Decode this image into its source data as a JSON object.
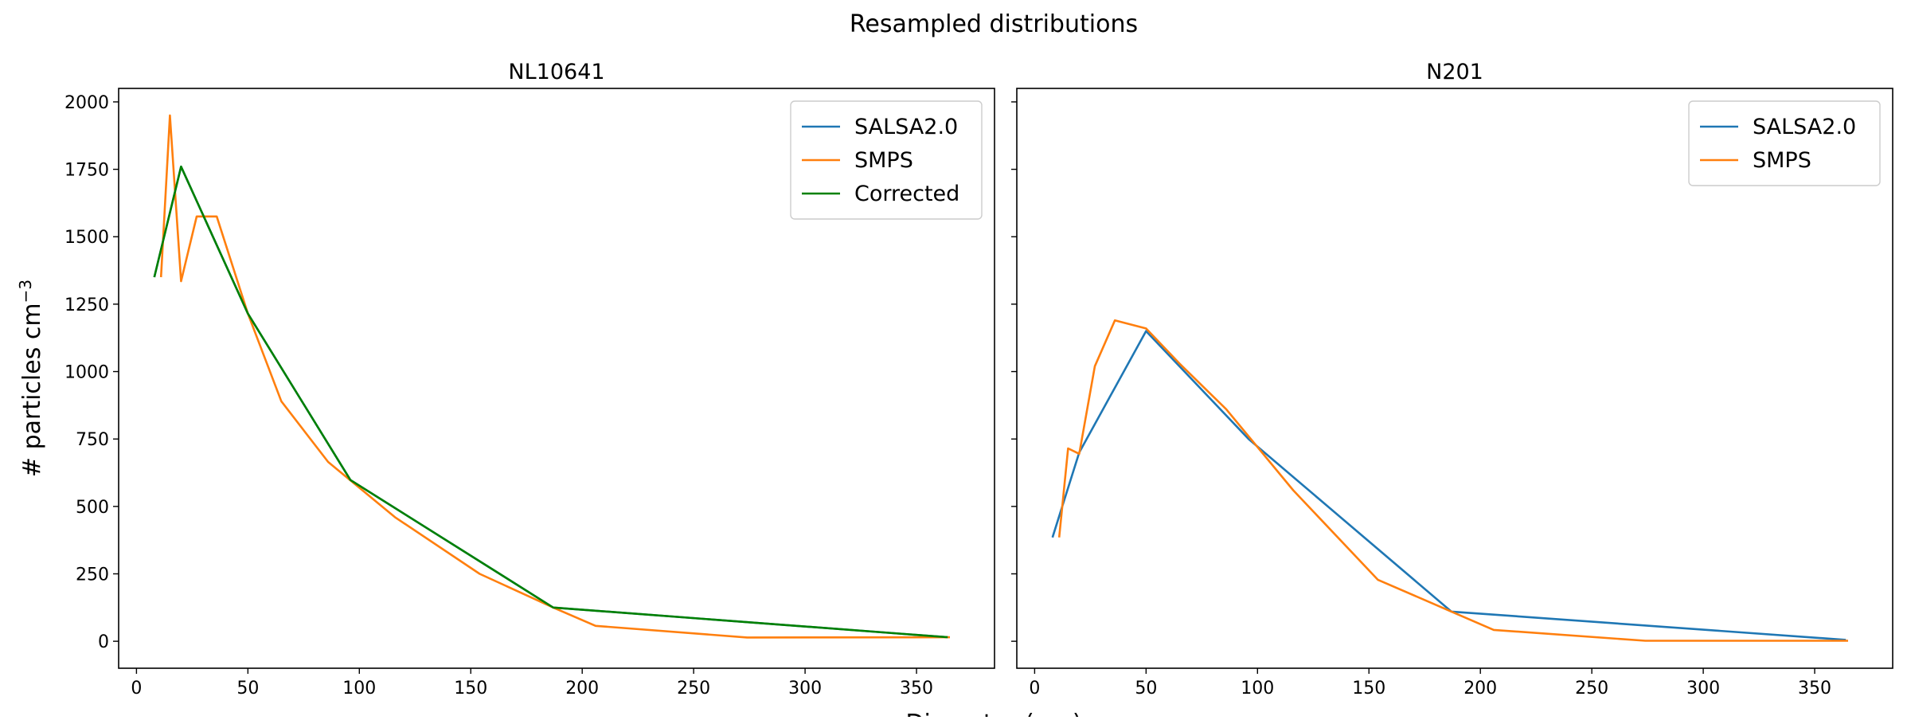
{
  "figure": {
    "title": "Resampled distributions",
    "ylabel": "# particles cm",
    "ylabel_superscript": "−3",
    "xlabel": "Diameter (nm)"
  },
  "colors": {
    "salsa": "#1f77b4",
    "smps": "#ff7f0e",
    "corrected": "#008000",
    "axes": "#000000",
    "legend_border": "#cccccc"
  },
  "chart_data": [
    {
      "type": "line",
      "title": "NL10641",
      "xlim": [
        -8,
        385
      ],
      "ylim": [
        -100,
        2050
      ],
      "xticks": [
        0,
        50,
        100,
        150,
        200,
        250,
        300,
        350
      ],
      "yticks": [
        0,
        250,
        500,
        750,
        1000,
        1250,
        1500,
        1750,
        2000
      ],
      "show_yticklabels": true,
      "grid": false,
      "legend_position": "top-right",
      "legend": [
        "SALSA2.0",
        "SMPS",
        "Corrected"
      ],
      "series": [
        {
          "name": "SALSA2.0",
          "color_key": "salsa",
          "x": [
            8,
            20,
            50,
            96,
            187,
            364
          ],
          "y": [
            1350,
            1760,
            1215,
            598,
            125,
            15
          ]
        },
        {
          "name": "SMPS",
          "color_key": "smps",
          "x": [
            11,
            15,
            20,
            27,
            36,
            50,
            65,
            86,
            116,
            154,
            187,
            206,
            274,
            365
          ],
          "y": [
            1350,
            1950,
            1335,
            1575,
            1575,
            1215,
            890,
            665,
            460,
            250,
            125,
            57,
            14,
            15
          ]
        },
        {
          "name": "Corrected",
          "color_key": "corrected",
          "x": [
            8,
            20,
            50,
            96,
            187,
            364
          ],
          "y": [
            1350,
            1760,
            1215,
            598,
            125,
            15
          ]
        }
      ]
    },
    {
      "type": "line",
      "title": "N201",
      "xlim": [
        -8,
        385
      ],
      "ylim": [
        -100,
        2050
      ],
      "xticks": [
        0,
        50,
        100,
        150,
        200,
        250,
        300,
        350
      ],
      "yticks": [
        0,
        250,
        500,
        750,
        1000,
        1250,
        1500,
        1750,
        2000
      ],
      "show_yticklabels": false,
      "grid": false,
      "legend_position": "top-right",
      "legend": [
        "SALSA2.0",
        "SMPS"
      ],
      "series": [
        {
          "name": "SALSA2.0",
          "color_key": "salsa",
          "x": [
            8,
            20,
            50,
            96,
            187,
            364
          ],
          "y": [
            385,
            700,
            1150,
            750,
            110,
            5
          ]
        },
        {
          "name": "SMPS",
          "color_key": "smps",
          "x": [
            11,
            15,
            20,
            27,
            36,
            50,
            65,
            86,
            116,
            154,
            187,
            206,
            274,
            365
          ],
          "y": [
            385,
            715,
            695,
            1020,
            1190,
            1160,
            1030,
            860,
            560,
            228,
            110,
            42,
            2,
            2
          ]
        }
      ]
    }
  ]
}
